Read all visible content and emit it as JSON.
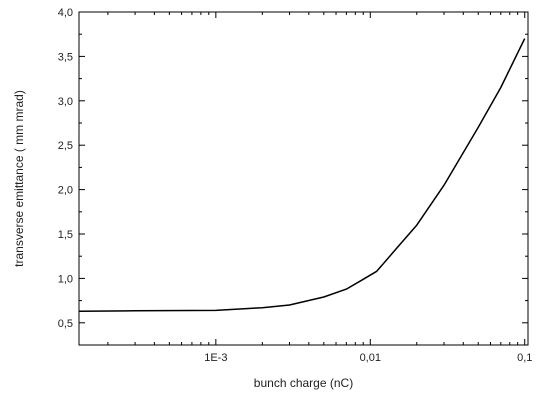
{
  "chart_data": {
    "type": "line",
    "xscale": "log",
    "xlabel": "bunch charge (nC)",
    "ylabel": "transverse emittance ( mm mrad)",
    "xlim": [
      0.00013,
      0.105
    ],
    "ylim": [
      0.25,
      4.0
    ],
    "x_tick_values": [
      0.001,
      0.01,
      0.1
    ],
    "x_tick_labels": [
      "1E-3",
      "0,01",
      "0,1"
    ],
    "y_tick_values": [
      0.5,
      1.0,
      1.5,
      2.0,
      2.5,
      3.0,
      3.5,
      4.0
    ],
    "y_tick_labels": [
      "0,5",
      "1,0",
      "1,5",
      "2,0",
      "2,5",
      "3,0",
      "3,5",
      "4,0"
    ],
    "grid": false,
    "line_color": "#000000",
    "series": [
      {
        "x": [
          0.00013,
          0.0003,
          0.001,
          0.002,
          0.003,
          0.005,
          0.007,
          0.009,
          0.011,
          0.015,
          0.02,
          0.03,
          0.05,
          0.07,
          0.1
        ],
        "y": [
          0.63,
          0.635,
          0.64,
          0.67,
          0.7,
          0.79,
          0.88,
          0.99,
          1.08,
          1.35,
          1.6,
          2.05,
          2.7,
          3.15,
          3.7
        ]
      }
    ]
  }
}
